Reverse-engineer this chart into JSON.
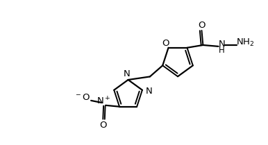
{
  "bg_color": "#ffffff",
  "line_color": "#000000",
  "line_width": 1.6,
  "figsize": [
    3.86,
    2.09
  ],
  "dpi": 100,
  "xlim": [
    0,
    10
  ],
  "ylim": [
    0,
    5.4
  ]
}
